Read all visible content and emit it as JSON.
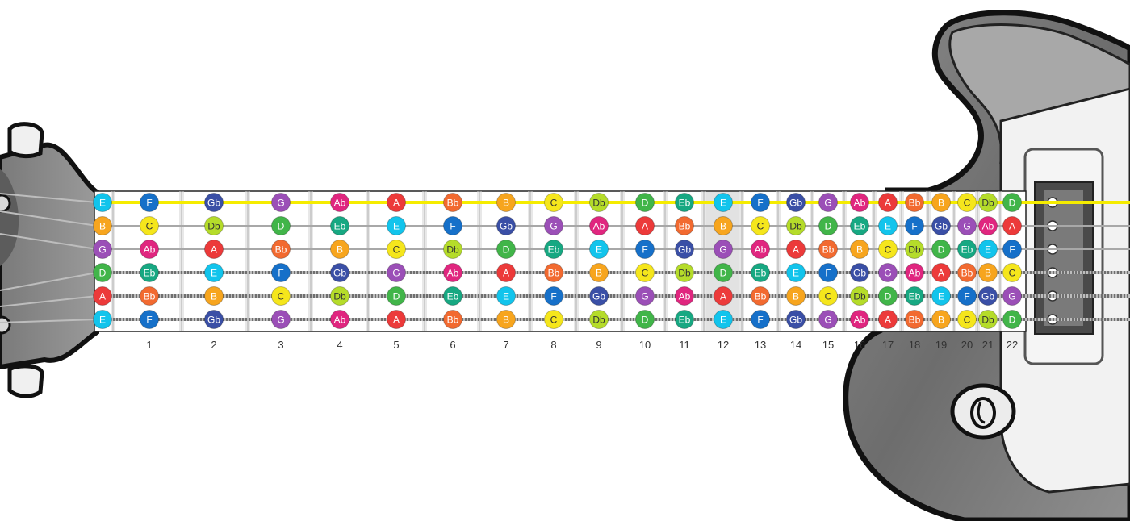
{
  "fretboard": {
    "open_notes": [
      "E",
      "B",
      "G",
      "D",
      "A",
      "E"
    ],
    "rows": [
      [
        "E",
        "F",
        "Gb",
        "G",
        "Ab",
        "A",
        "Bb",
        "B",
        "C",
        "Db",
        "D",
        "Eb",
        "E",
        "F",
        "Gb",
        "G",
        "Ab",
        "A",
        "Bb",
        "B",
        "C",
        "Db",
        "D"
      ],
      [
        "B",
        "C",
        "Db",
        "D",
        "Eb",
        "E",
        "F",
        "Gb",
        "G",
        "Ab",
        "A",
        "Bb",
        "B",
        "C",
        "Db",
        "D",
        "Eb",
        "E",
        "F",
        "Gb",
        "G",
        "Ab",
        "A"
      ],
      [
        "G",
        "Ab",
        "A",
        "Bb",
        "B",
        "C",
        "Db",
        "D",
        "Eb",
        "E",
        "F",
        "Gb",
        "G",
        "Ab",
        "A",
        "Bb",
        "B",
        "C",
        "Db",
        "D",
        "Eb",
        "E",
        "F"
      ],
      [
        "D",
        "Eb",
        "E",
        "F",
        "Gb",
        "G",
        "Ab",
        "A",
        "Bb",
        "B",
        "C",
        "Db",
        "D",
        "Eb",
        "E",
        "F",
        "Gb",
        "G",
        "Ab",
        "A",
        "Bb",
        "B",
        "C"
      ],
      [
        "A",
        "Bb",
        "B",
        "C",
        "Db",
        "D",
        "Eb",
        "E",
        "F",
        "Gb",
        "G",
        "Ab",
        "A",
        "Bb",
        "B",
        "C",
        "Db",
        "D",
        "Eb",
        "E",
        "F",
        "Gb",
        "G"
      ],
      [
        "E",
        "F",
        "Gb",
        "G",
        "Ab",
        "A",
        "Bb",
        "B",
        "C",
        "Db",
        "D",
        "Eb",
        "E",
        "F",
        "Gb",
        "G",
        "Ab",
        "A",
        "Bb",
        "B",
        "C",
        "Db",
        "D"
      ]
    ],
    "fret_numbers": [
      "1",
      "2",
      "3",
      "4",
      "5",
      "6",
      "7",
      "8",
      "9",
      "10",
      "11",
      "12",
      "13",
      "14",
      "15",
      "16",
      "17",
      "18",
      "19",
      "20",
      "21",
      "22"
    ],
    "highlighted_string": 1,
    "highlight_color": "#f5ec00",
    "highlighted_fret": 12
  },
  "note_colors": {
    "C": "#f5e61c",
    "Db": "#b5dc2a",
    "D": "#41b549",
    "Eb": "#17a882",
    "E": "#12c4ec",
    "F": "#1670c9",
    "Gb": "#3a4fa6",
    "G": "#9b4fb7",
    "Ab": "#e0267f",
    "A": "#ec3a3a",
    "Bb": "#f26a30",
    "B": "#f7a51e"
  },
  "icons": [
    "headstock-icon",
    "tuning-peg-icon",
    "guitar-body-icon",
    "pickup-icon",
    "control-knob-icon"
  ]
}
